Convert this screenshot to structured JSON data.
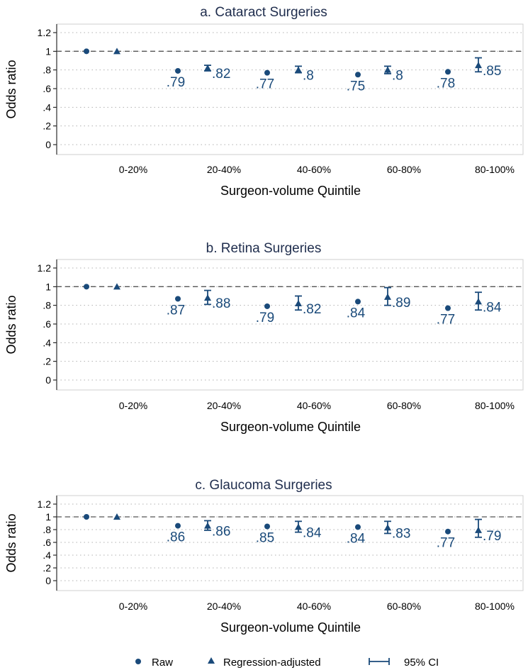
{
  "chart_data": [
    {
      "type": "scatter",
      "title": "a. Cataract Surgeries",
      "ylabel": "Odds ratio",
      "xlabel": "Surgeon-volume Quintile",
      "categories": [
        "0-20%",
        "20-40%",
        "40-60%",
        "60-80%",
        "80-100%"
      ],
      "yticks": [
        "0",
        ".2",
        ".4",
        ".6",
        ".8",
        "1",
        "1.2"
      ],
      "ylim": [
        0,
        1.2
      ],
      "reference_line": 1,
      "series": [
        {
          "name": "Raw",
          "values": [
            1,
            0.79,
            0.77,
            0.75,
            0.78
          ],
          "labels": [
            "",
            ".79",
            ".77",
            ".75",
            ".78"
          ]
        },
        {
          "name": "Regression-adjusted",
          "values": [
            1,
            0.82,
            0.8,
            0.8,
            0.85
          ],
          "labels": [
            "",
            ".82",
            ".8",
            ".8",
            ".85"
          ],
          "ci": [
            null,
            [
              0.79,
              0.85
            ],
            [
              0.77,
              0.84
            ],
            [
              0.76,
              0.84
            ],
            [
              0.78,
              0.93
            ]
          ]
        }
      ]
    },
    {
      "type": "scatter",
      "title": "b. Retina Surgeries",
      "ylabel": "Odds ratio",
      "xlabel": "Surgeon-volume Quintile",
      "categories": [
        "0-20%",
        "20-40%",
        "40-60%",
        "60-80%",
        "80-100%"
      ],
      "yticks": [
        "0",
        ".2",
        ".4",
        ".6",
        ".8",
        "1",
        "1.2"
      ],
      "ylim": [
        0,
        1.2
      ],
      "reference_line": 1,
      "series": [
        {
          "name": "Raw",
          "values": [
            1,
            0.87,
            0.79,
            0.84,
            0.77
          ],
          "labels": [
            "",
            ".87",
            ".79",
            ".84",
            ".77"
          ]
        },
        {
          "name": "Regression-adjusted",
          "values": [
            1,
            0.88,
            0.82,
            0.89,
            0.84
          ],
          "labels": [
            "",
            ".88",
            ".82",
            ".89",
            ".84"
          ],
          "ci": [
            null,
            [
              0.81,
              0.96
            ],
            [
              0.75,
              0.9
            ],
            [
              0.8,
              0.99
            ],
            [
              0.75,
              0.94
            ]
          ]
        }
      ]
    },
    {
      "type": "scatter",
      "title": "c. Glaucoma Surgeries",
      "ylabel": "Odds ratio",
      "xlabel": "Surgeon-volume Quintile",
      "categories": [
        "0-20%",
        "20-40%",
        "40-60%",
        "60-80%",
        "80-100%"
      ],
      "yticks": [
        "0",
        ".2",
        ".4",
        ".6",
        ".8",
        "1",
        "1.2"
      ],
      "ylim": [
        0,
        1.2
      ],
      "reference_line": 1,
      "series": [
        {
          "name": "Raw",
          "values": [
            1,
            0.86,
            0.85,
            0.84,
            0.77
          ],
          "labels": [
            "",
            ".86",
            ".85",
            ".84",
            ".77"
          ]
        },
        {
          "name": "Regression-adjusted",
          "values": [
            1,
            0.86,
            0.84,
            0.83,
            0.79
          ],
          "labels": [
            "",
            ".86",
            ".84",
            ".83",
            ".79"
          ],
          "ci": [
            null,
            [
              0.79,
              0.94
            ],
            [
              0.76,
              0.93
            ],
            [
              0.74,
              0.93
            ],
            [
              0.68,
              0.96
            ]
          ]
        }
      ]
    }
  ],
  "legend": {
    "raw_label": "Raw",
    "adjusted_label": "Regression-adjusted",
    "ci_label": "95% CI"
  },
  "colors": {
    "marker": "#1a4a7a",
    "reference_line": "#555555",
    "grid": "#b0b0b0",
    "axis": "#000000",
    "title": "#1f2d4d"
  }
}
